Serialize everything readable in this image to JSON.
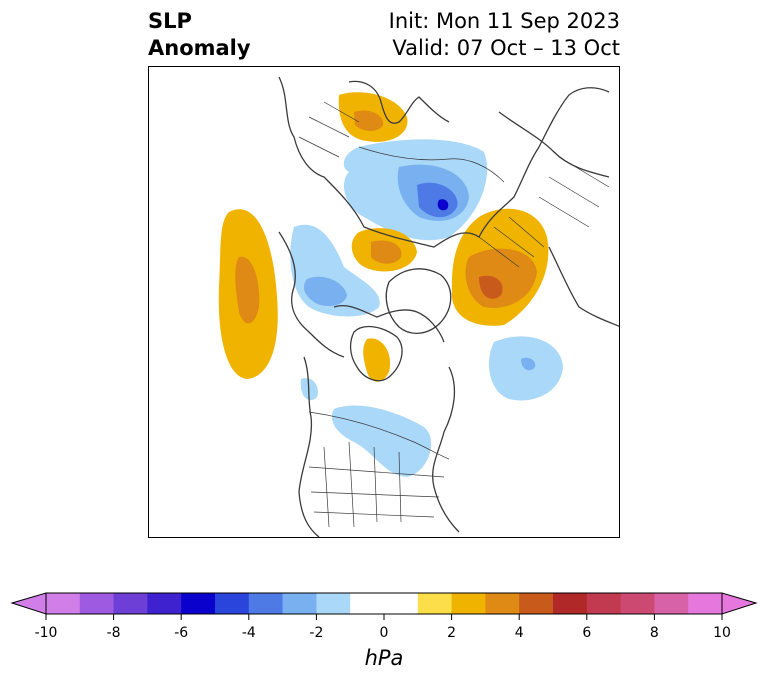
{
  "title": {
    "left_line1": "SLP",
    "left_line2": "Anomaly",
    "right_line1": "Init: Mon 11 Sep 2023",
    "right_line2": "Valid: 07 Oct – 13 Oct"
  },
  "colors": {
    "coastline": "#3a3a3a",
    "frame": "#000000"
  },
  "colorbar": {
    "unit": "hPa",
    "min": -10,
    "max": 10,
    "bins": [
      {
        "from": -10,
        "to": -9,
        "color": "#d17ee8"
      },
      {
        "from": -9,
        "to": -8,
        "color": "#9e5ae0"
      },
      {
        "from": -8,
        "to": -7,
        "color": "#6d3fd6"
      },
      {
        "from": -7,
        "to": -6,
        "color": "#3e22d0"
      },
      {
        "from": -6,
        "to": -5,
        "color": "#0a02cc"
      },
      {
        "from": -5,
        "to": -4,
        "color": "#2a45dc"
      },
      {
        "from": -4,
        "to": -3,
        "color": "#4e7ae6"
      },
      {
        "from": -3,
        "to": -2,
        "color": "#79b0f0"
      },
      {
        "from": -2,
        "to": -1,
        "color": "#a9d8f8"
      },
      {
        "from": -1,
        "to": 1,
        "color": "#ffffff"
      },
      {
        "from": 1,
        "to": 2,
        "color": "#fbde4a"
      },
      {
        "from": 2,
        "to": 3,
        "color": "#f0b400"
      },
      {
        "from": 3,
        "to": 4,
        "color": "#de8a14"
      },
      {
        "from": 4,
        "to": 5,
        "color": "#c85a1c"
      },
      {
        "from": 5,
        "to": 6,
        "color": "#b02828"
      },
      {
        "from": 6,
        "to": 7,
        "color": "#c23a50"
      },
      {
        "from": 7,
        "to": 8,
        "color": "#cc4a72"
      },
      {
        "from": 8,
        "to": 9,
        "color": "#d862a8"
      },
      {
        "from": 9,
        "to": 10,
        "color": "#e677dc"
      }
    ],
    "extend_low_color": "#d17ee8",
    "extend_high_color": "#e677dc",
    "ticks": [
      {
        "value": -10,
        "label": "-10"
      },
      {
        "value": -8,
        "label": "-8"
      },
      {
        "value": -6,
        "label": "-6"
      },
      {
        "value": -4,
        "label": "-4"
      },
      {
        "value": -2,
        "label": "-2"
      },
      {
        "value": 0,
        "label": "0"
      },
      {
        "value": 2,
        "label": "2"
      },
      {
        "value": 4,
        "label": "4"
      },
      {
        "value": 6,
        "label": "6"
      },
      {
        "value": 8,
        "label": "8"
      },
      {
        "value": 10,
        "label": "10"
      }
    ]
  },
  "anomaly_features": [
    {
      "id": "scandinavia-high",
      "level": 2
    },
    {
      "id": "siberia-low-outer",
      "level": -2
    },
    {
      "id": "siberia-low-center",
      "level": -4
    },
    {
      "id": "barents-high",
      "level": 2
    },
    {
      "id": "alaska-high",
      "level": 2
    },
    {
      "id": "bering-low",
      "level": -2
    },
    {
      "id": "arctic-low",
      "level": -3
    },
    {
      "id": "hudson-high",
      "level": 1
    },
    {
      "id": "atlantic-low",
      "level": -2
    },
    {
      "id": "north-america-low",
      "level": -2
    }
  ]
}
